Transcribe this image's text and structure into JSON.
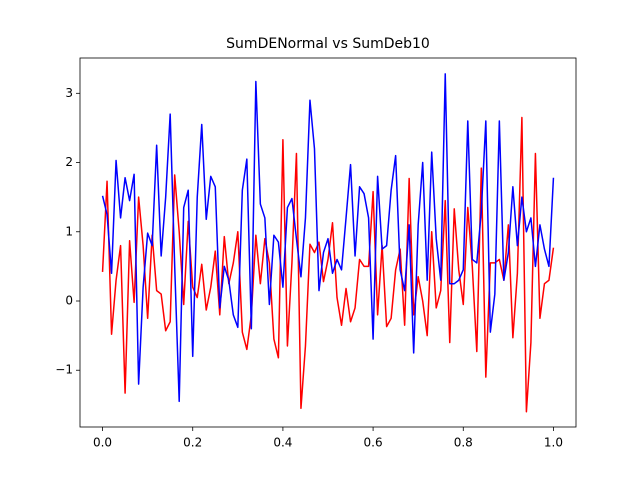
{
  "chart_data": {
    "type": "line",
    "title": "SumDENormal vs SumDeb10",
    "x": [
      0,
      0.01,
      0.02,
      0.03,
      0.04,
      0.05,
      0.06,
      0.07,
      0.08,
      0.09,
      0.1,
      0.11,
      0.12,
      0.13,
      0.14,
      0.15,
      0.16,
      0.17,
      0.18,
      0.19,
      0.2,
      0.21,
      0.22,
      0.23,
      0.24,
      0.25,
      0.26,
      0.27,
      0.28,
      0.29,
      0.3,
      0.31,
      0.32,
      0.33,
      0.34,
      0.35,
      0.36,
      0.37,
      0.38,
      0.39,
      0.4,
      0.41,
      0.42,
      0.43,
      0.44,
      0.45,
      0.46,
      0.47,
      0.48,
      0.49,
      0.5,
      0.51,
      0.52,
      0.53,
      0.54,
      0.55,
      0.56,
      0.57,
      0.58,
      0.59,
      0.6,
      0.61,
      0.62,
      0.63,
      0.64,
      0.65,
      0.66,
      0.67,
      0.68,
      0.69,
      0.7,
      0.71,
      0.72,
      0.73,
      0.74,
      0.75,
      0.76,
      0.77,
      0.78,
      0.79,
      0.8,
      0.81,
      0.82,
      0.83,
      0.84,
      0.85,
      0.86,
      0.87,
      0.88,
      0.89,
      0.9,
      0.91,
      0.92,
      0.93,
      0.94,
      0.95,
      0.96,
      0.97,
      0.98,
      0.99,
      1
    ],
    "series": [
      {
        "color": "#ff0000",
        "values": [
          0.42,
          1.73,
          -0.48,
          0.3,
          0.8,
          -1.33,
          0.87,
          -0.02,
          1.5,
          0.8,
          -0.25,
          0.95,
          0.15,
          0.1,
          -0.43,
          -0.3,
          1.82,
          1.0,
          -0.05,
          1.15,
          0.2,
          0.05,
          0.53,
          -0.13,
          0.2,
          0.72,
          -0.2,
          0.93,
          0.25,
          0.55,
          1.0,
          -0.45,
          -0.7,
          -0.2,
          0.95,
          0.25,
          0.9,
          0.55,
          -0.55,
          -0.82,
          2.33,
          -0.65,
          0.55,
          2.13,
          -1.55,
          -0.65,
          0.82,
          0.7,
          0.85,
          0.28,
          0.6,
          1.13,
          0.05,
          -0.35,
          0.18,
          -0.3,
          -0.1,
          0.6,
          0.5,
          0.5,
          1.58,
          -0.2,
          0.8,
          -0.37,
          -0.25,
          0.45,
          0.75,
          -0.35,
          1.77,
          -0.2,
          0.35,
          0.0,
          -0.5,
          1.0,
          -0.1,
          0.15,
          1.45,
          -0.6,
          1.33,
          0.45,
          -0.05,
          1.35,
          0.5,
          -0.73,
          1.92,
          -1.1,
          0.55,
          0.55,
          0.6,
          0.3,
          1.1,
          -0.53,
          0.4,
          2.65,
          -1.6,
          -0.6,
          2.13,
          -0.25,
          0.25,
          0.3,
          0.77
        ]
      },
      {
        "color": "#0000ff",
        "values": [
          1.52,
          1.25,
          0.4,
          2.03,
          1.2,
          1.78,
          1.45,
          1.83,
          -1.2,
          0.2,
          0.98,
          0.8,
          2.25,
          0.65,
          1.5,
          2.7,
          0.5,
          -1.45,
          1.35,
          1.6,
          -0.8,
          1.5,
          2.55,
          1.18,
          1.8,
          1.65,
          -0.1,
          0.5,
          0.3,
          -0.2,
          -0.38,
          1.6,
          2.05,
          -0.4,
          3.17,
          1.4,
          1.2,
          -0.05,
          0.95,
          0.85,
          0.2,
          1.35,
          1.48,
          0.9,
          0.35,
          1.2,
          2.9,
          2.2,
          0.15,
          0.7,
          0.9,
          0.4,
          0.6,
          0.45,
          1.2,
          1.97,
          0.65,
          1.65,
          1.55,
          1.2,
          -0.55,
          1.8,
          0.75,
          0.8,
          1.6,
          2.1,
          0.45,
          0.15,
          1.1,
          -0.75,
          1.1,
          2.0,
          0.3,
          2.15,
          0.9,
          0.3,
          3.28,
          0.25,
          0.25,
          0.3,
          0.45,
          2.6,
          0.6,
          0.55,
          1.3,
          2.6,
          -0.45,
          0.1,
          2.6,
          0.3,
          0.7,
          1.65,
          0.8,
          1.5,
          1.0,
          1.2,
          0.5,
          1.1,
          0.75,
          0.5,
          1.78
        ]
      }
    ],
    "xlim": [
      -0.05,
      1.05
    ],
    "ylim": [
      -1.82,
      3.51
    ],
    "xticks": [
      {
        "value": 0,
        "label": "0.0"
      },
      {
        "value": 0.2,
        "label": "0.2"
      },
      {
        "value": 0.4,
        "label": "0.4"
      },
      {
        "value": 0.6,
        "label": "0.6"
      },
      {
        "value": 0.8,
        "label": "0.8"
      },
      {
        "value": 1,
        "label": "1.0"
      }
    ],
    "yticks": [
      {
        "value": -1,
        "label": "−1"
      },
      0,
      1,
      2,
      3
    ]
  }
}
